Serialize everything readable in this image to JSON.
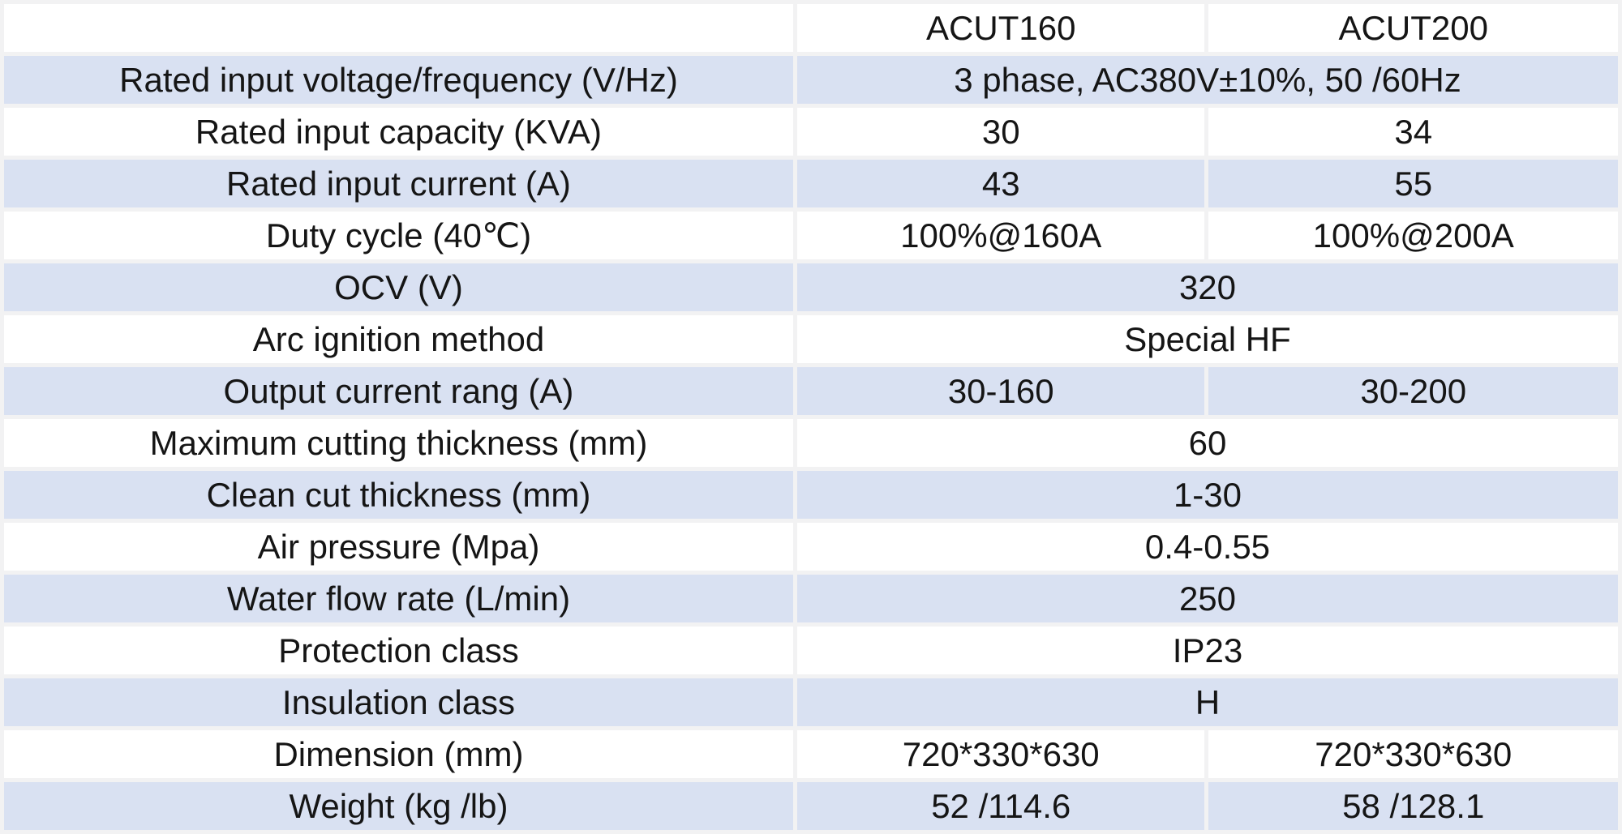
{
  "colors": {
    "cell_white": "#ffffff",
    "cell_blue": "#d9e1f2",
    "grid_background": "#f2f2f3",
    "text": "#151515"
  },
  "table": {
    "columns": [
      "",
      "ACUT160",
      "ACUT200"
    ],
    "rows": [
      {
        "label": "Rated input voltage/frequency (V/Hz)",
        "span": "3 phase, AC380V±10%, 50 /60Hz"
      },
      {
        "label": "Rated input capacity (KVA)",
        "acut160": "30",
        "acut200": "34"
      },
      {
        "label": "Rated input current (A)",
        "acut160": "43",
        "acut200": "55"
      },
      {
        "label": "Duty cycle (40℃)",
        "acut160": "100%@160A",
        "acut200": "100%@200A"
      },
      {
        "label": "OCV (V)",
        "span": "320"
      },
      {
        "label": "Arc ignition method",
        "span": "Special HF"
      },
      {
        "label": "Output current rang (A)",
        "acut160": "30-160",
        "acut200": "30-200"
      },
      {
        "label": "Maximum cutting thickness (mm)",
        "span": "60"
      },
      {
        "label": "Clean cut thickness (mm)",
        "span": "1-30"
      },
      {
        "label": "Air pressure (Mpa)",
        "span": "0.4-0.55"
      },
      {
        "label": "Water flow rate (L/min)",
        "span": "250"
      },
      {
        "label": "Protection class",
        "span": "IP23"
      },
      {
        "label": "Insulation class",
        "span": "H"
      },
      {
        "label": "Dimension (mm)",
        "acut160": "720*330*630",
        "acut200": "720*330*630"
      },
      {
        "label": "Weight (kg /lb)",
        "acut160": "52 /114.6",
        "acut200": "58 /128.1"
      }
    ]
  }
}
